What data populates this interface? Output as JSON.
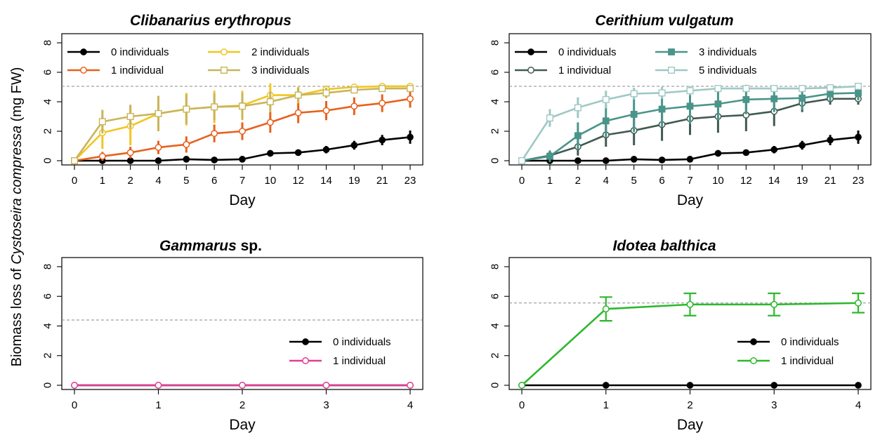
{
  "y_axis_label": {
    "prefix": "Biomass loss of ",
    "species": "Cystoseira compressa",
    "suffix": " (mg FW)"
  },
  "chart_data": [
    {
      "type": "line",
      "title": "Clibanarius erythropus",
      "title_suffix": "",
      "xlabel": "Day",
      "x_tick_labels": [
        "0",
        "1",
        "2",
        "4",
        "5",
        "6",
        "7",
        "10",
        "12",
        "14",
        "19",
        "21",
        "23"
      ],
      "ylim": [
        0,
        8
      ],
      "yticks": [
        0,
        2,
        4,
        6,
        8
      ],
      "reference_line": 5.05,
      "legend_layout": "two-column, top-left",
      "series": [
        {
          "name": "0 individuals",
          "color": "#000000",
          "marker": "filled-circle",
          "values": [
            0,
            0,
            0,
            0,
            0.1,
            0.05,
            0.1,
            0.5,
            0.55,
            0.75,
            1.05,
            1.4,
            1.6
          ],
          "errors": [
            0,
            0.1,
            0.05,
            0.1,
            0.1,
            0.05,
            0.1,
            0.15,
            0.2,
            0.25,
            0.3,
            0.35,
            0.45
          ]
        },
        {
          "name": "1 individual",
          "color": "#e8601c",
          "marker": "open-circle",
          "values": [
            0,
            0.3,
            0.55,
            0.9,
            1.1,
            1.85,
            2.0,
            2.6,
            3.25,
            3.4,
            3.7,
            3.9,
            4.2
          ],
          "errors": [
            0,
            0.3,
            0.4,
            0.45,
            0.55,
            0.6,
            0.6,
            0.7,
            0.7,
            0.65,
            0.6,
            0.6,
            0.6
          ]
        },
        {
          "name": "2 individuals",
          "color": "#f2c521",
          "marker": "open-circle",
          "values": [
            0,
            1.9,
            2.35,
            3.2,
            3.5,
            3.65,
            3.75,
            4.45,
            4.45,
            4.85,
            5.0,
            5.05,
            5.05
          ],
          "errors": [
            0,
            1.1,
            1.3,
            1.2,
            1.1,
            1.1,
            1.0,
            0.8,
            0.55,
            0.25,
            0.2,
            0.15,
            0.1
          ]
        },
        {
          "name": "3 individuals",
          "color": "#c9b45a",
          "marker": "open-square",
          "values": [
            0,
            2.65,
            3.0,
            3.2,
            3.5,
            3.65,
            3.7,
            4.0,
            4.45,
            4.6,
            4.8,
            4.9,
            4.9
          ],
          "errors": [
            0,
            0.8,
            0.8,
            1.2,
            1.0,
            0.9,
            0.9,
            0.7,
            0.5,
            0.35,
            0.2,
            0.15,
            0.2
          ]
        }
      ]
    },
    {
      "type": "line",
      "title": "Cerithium vulgatum",
      "title_suffix": "",
      "xlabel": "Day",
      "x_tick_labels": [
        "0",
        "1",
        "2",
        "4",
        "5",
        "6",
        "7",
        "10",
        "12",
        "14",
        "19",
        "21",
        "23"
      ],
      "ylim": [
        0,
        8
      ],
      "yticks": [
        0,
        2,
        4,
        6,
        8
      ],
      "reference_line": 5.05,
      "legend_layout": "two-column, top-left",
      "series": [
        {
          "name": "0 individuals",
          "color": "#000000",
          "marker": "filled-circle",
          "values": [
            0,
            0,
            0,
            0,
            0.1,
            0.05,
            0.1,
            0.5,
            0.55,
            0.75,
            1.05,
            1.4,
            1.6
          ],
          "errors": [
            0,
            0.1,
            0.05,
            0.1,
            0.1,
            0.05,
            0.1,
            0.15,
            0.2,
            0.25,
            0.3,
            0.35,
            0.45
          ]
        },
        {
          "name": "1 individual",
          "color": "#405a52",
          "marker": "open-circle",
          "values": [
            0,
            0.35,
            0.95,
            1.75,
            2.05,
            2.45,
            2.85,
            3.0,
            3.1,
            3.35,
            3.9,
            4.2,
            4.2
          ],
          "errors": [
            0,
            0.3,
            0.6,
            0.8,
            1.0,
            1.1,
            1.1,
            1.1,
            1.1,
            1.0,
            0.6,
            0.4,
            0.4
          ]
        },
        {
          "name": "3 individuals",
          "color": "#4a948a",
          "marker": "filled-square",
          "values": [
            0,
            0.3,
            1.7,
            2.7,
            3.15,
            3.5,
            3.7,
            3.85,
            4.15,
            4.2,
            4.25,
            4.55,
            4.6
          ],
          "errors": [
            0,
            0.4,
            0.9,
            1.1,
            1.2,
            1.2,
            1.2,
            1.1,
            1.0,
            0.9,
            0.8,
            0.5,
            0.5
          ]
        },
        {
          "name": "5 individuals",
          "color": "#9ec9c4",
          "marker": "open-square",
          "values": [
            0,
            2.9,
            3.6,
            4.15,
            4.55,
            4.6,
            4.75,
            4.9,
            4.9,
            4.9,
            4.9,
            4.95,
            5.05
          ],
          "errors": [
            0,
            0.6,
            0.7,
            0.6,
            0.4,
            0.4,
            0.3,
            0.2,
            0.2,
            0.2,
            0.15,
            0.1,
            0.1
          ]
        }
      ]
    },
    {
      "type": "line",
      "title": "Gammarus",
      "title_suffix": " sp.",
      "xlabel": "Day",
      "x_tick_labels": [
        "0",
        "1",
        "2",
        "3",
        "4"
      ],
      "ylim": [
        0,
        8
      ],
      "yticks": [
        0,
        2,
        4,
        6,
        8
      ],
      "reference_line": 4.4,
      "legend_layout": "single-column, bottom-right",
      "series": [
        {
          "name": "0 individuals",
          "color": "#000000",
          "marker": "filled-circle",
          "values": [
            0,
            0,
            0,
            0,
            0
          ],
          "errors": [
            0,
            0,
            0,
            0,
            0
          ]
        },
        {
          "name": "1 individual",
          "color": "#e03d96",
          "marker": "open-circle",
          "values": [
            0,
            0,
            0,
            0,
            0
          ],
          "errors": [
            0,
            0,
            0,
            0,
            0
          ]
        }
      ]
    },
    {
      "type": "line",
      "title": "Idotea balthica",
      "title_suffix": "",
      "xlabel": "Day",
      "x_tick_labels": [
        "0",
        "1",
        "2",
        "3",
        "4"
      ],
      "ylim": [
        0,
        8
      ],
      "yticks": [
        0,
        2,
        4,
        6,
        8
      ],
      "reference_line": 5.55,
      "legend_layout": "single-column, bottom-right",
      "series": [
        {
          "name": "0 individuals",
          "color": "#000000",
          "marker": "filled-circle",
          "values": [
            0,
            0,
            0,
            0,
            0
          ],
          "errors": [
            0,
            0,
            0,
            0,
            0
          ]
        },
        {
          "name": "1 individual",
          "color": "#2db82d",
          "marker": "open-circle",
          "values": [
            0,
            5.15,
            5.45,
            5.45,
            5.55
          ],
          "errors": [
            0,
            0.8,
            0.75,
            0.75,
            0.65
          ],
          "capped_errors": true
        }
      ]
    }
  ]
}
